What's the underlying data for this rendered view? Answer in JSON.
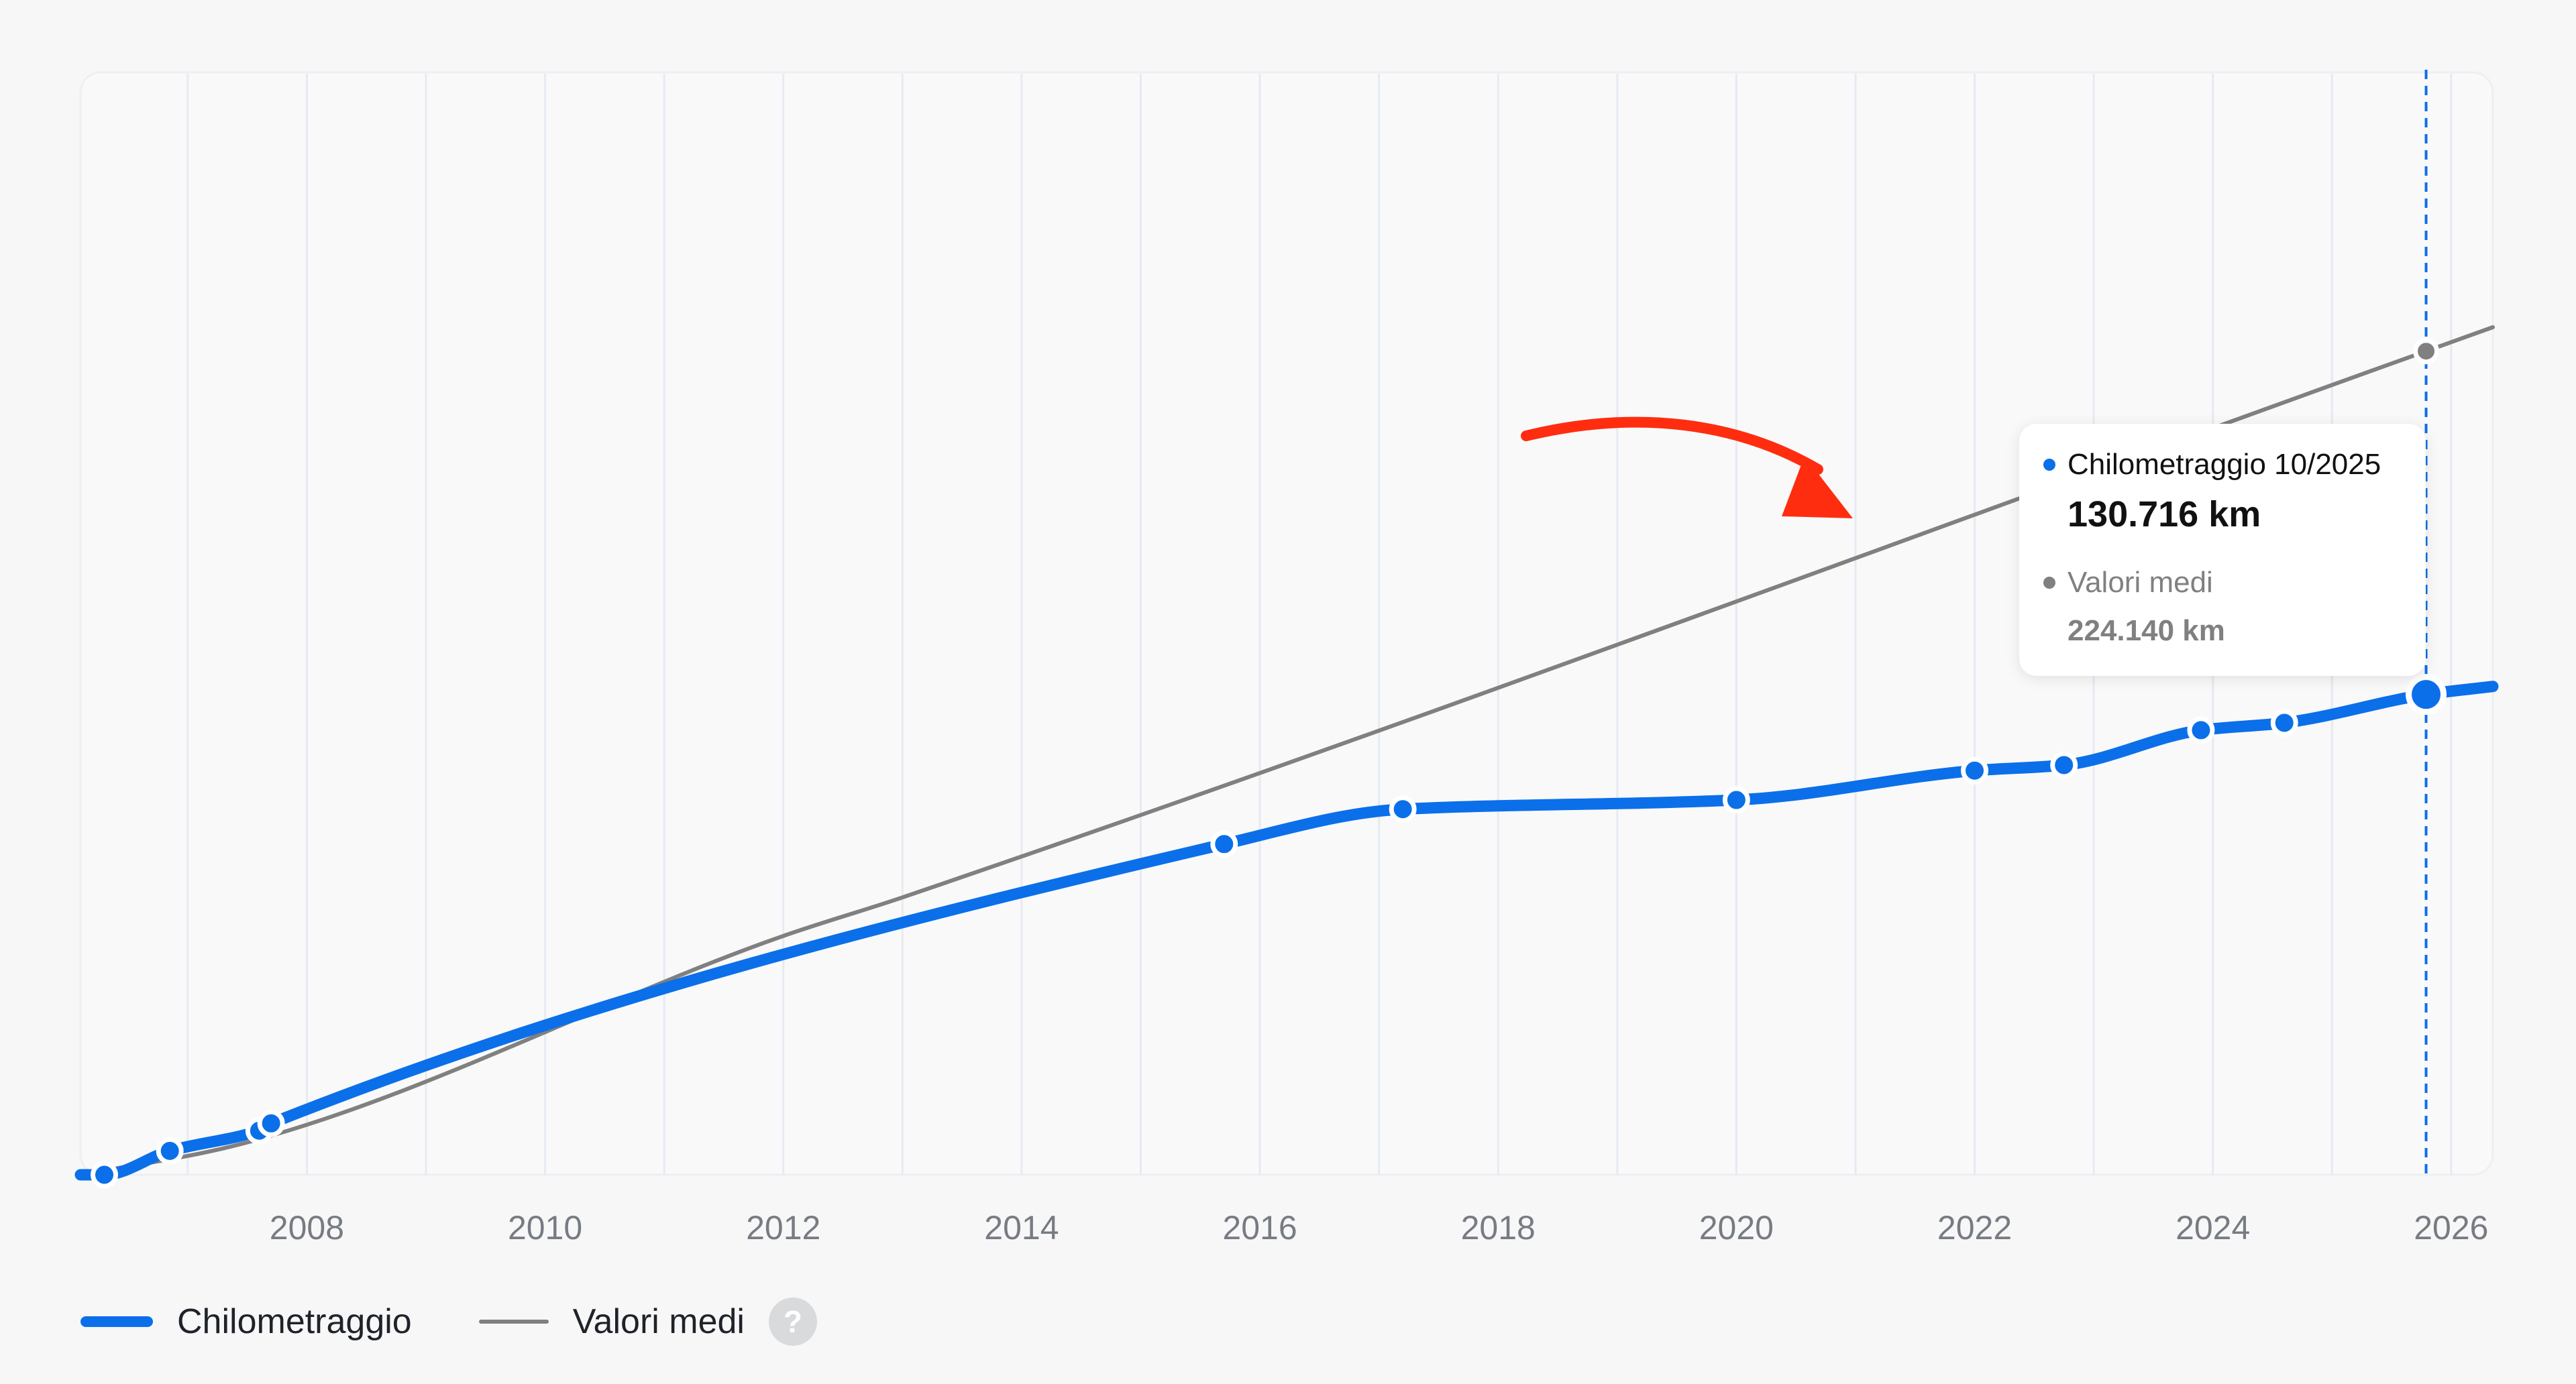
{
  "colors": {
    "km_line": "#0b6fe9",
    "avg_line": "#808080",
    "arrow": "#ff2d0f",
    "grid": "#e6eaf1",
    "tick_text": "#777b82",
    "tooltip_km_text": "#111111",
    "tooltip_avg_text": "#808080"
  },
  "chart_data": {
    "type": "line",
    "xlabel": "",
    "ylabel": "",
    "x_ticks": [
      "2008",
      "2010",
      "2012",
      "2014",
      "2016",
      "2018",
      "2020",
      "2022",
      "2024",
      "2026"
    ],
    "xlim": [
      2006.1,
      2026.35
    ],
    "ylim": [
      0,
      300000
    ],
    "grid": "vertical",
    "legend_placement": "bottom-left",
    "series": [
      {
        "name": "Chilometraggio",
        "points": [
          {
            "x": 2006.3,
            "y": 0
          },
          {
            "x": 2006.85,
            "y": 6500
          },
          {
            "x": 2007.6,
            "y": 12000
          },
          {
            "x": 2007.7,
            "y": 14000
          },
          {
            "x": 2015.7,
            "y": 90000
          },
          {
            "x": 2017.2,
            "y": 99500
          },
          {
            "x": 2020.0,
            "y": 102000
          },
          {
            "x": 2022.0,
            "y": 110000
          },
          {
            "x": 2022.75,
            "y": 111500
          },
          {
            "x": 2023.9,
            "y": 121000
          },
          {
            "x": 2024.6,
            "y": 123000
          },
          {
            "x": 2025.79,
            "y": 130716
          }
        ],
        "extend_to_x": 2026.35,
        "highlighted_index": 11
      },
      {
        "name": "Valori medi",
        "points": [
          {
            "x": 2006.1,
            "y": 0
          },
          {
            "x": 2007.4,
            "y": 8000
          },
          {
            "x": 2012.0,
            "y": 65000
          },
          {
            "x": 2013.0,
            "y": 75500
          },
          {
            "x": 2025.79,
            "y": 224140
          }
        ],
        "extend_to_x": 2026.35,
        "highlighted_index": 4
      }
    ]
  },
  "tooltip": {
    "km_label": "Chilometraggio 10/2025",
    "km_value": "130.716 km",
    "avg_label": "Valori medi",
    "avg_value": "224.140 km"
  },
  "legend": {
    "km_label": "Chilometraggio",
    "avg_label": "Valori medi",
    "help_glyph": "?",
    "help_icon": "question-circle-icon"
  }
}
